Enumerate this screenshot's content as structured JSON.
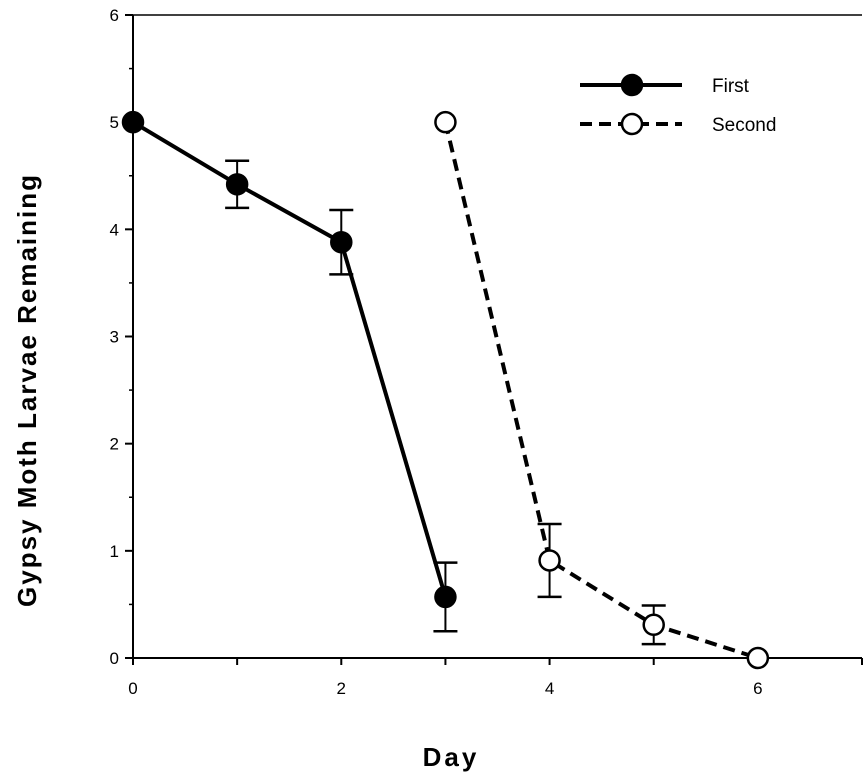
{
  "chart_data": {
    "type": "line",
    "title": "",
    "xlabel": "Day",
    "ylabel": "Gypsy Moth Larvae Remaining",
    "xlim": [
      0,
      7
    ],
    "ylim": [
      0,
      6
    ],
    "xticks": [
      0,
      1,
      2,
      3,
      4,
      5,
      6,
      7
    ],
    "xtick_labels": [
      "0",
      "",
      "2",
      "",
      "4",
      "",
      "6",
      ""
    ],
    "yticks": [
      0,
      1,
      2,
      3,
      4,
      5,
      6
    ],
    "ytick_labels": [
      "0",
      "1",
      "2",
      "3",
      "4",
      "5",
      "6"
    ],
    "grid": false,
    "legend_position": "top-right",
    "series": [
      {
        "name": "First",
        "marker": "filled-circle",
        "line_style": "solid",
        "color": "#000000",
        "x": [
          0,
          1,
          2,
          3
        ],
        "y": [
          5.0,
          4.42,
          3.88,
          0.57
        ],
        "error": [
          null,
          0.22,
          0.3,
          0.32
        ]
      },
      {
        "name": "Second",
        "marker": "open-circle",
        "line_style": "dashed",
        "color": "#000000",
        "x": [
          3,
          4,
          5,
          6
        ],
        "y": [
          5.0,
          0.91,
          0.31,
          0.0
        ],
        "error": [
          null,
          0.34,
          0.18,
          null
        ]
      }
    ]
  }
}
